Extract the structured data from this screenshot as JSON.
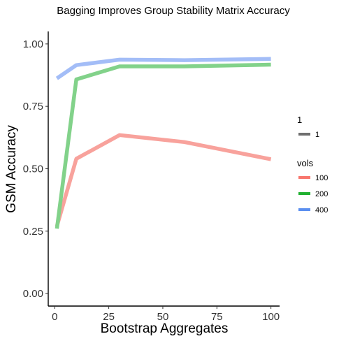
{
  "chart_data": {
    "type": "line",
    "title": "Bagging Improves Group Stability Matrix Accuracy",
    "xlabel": "Bootstrap Aggregates",
    "ylabel": "GSM Accuracy",
    "xlim": [
      -3,
      104
    ],
    "ylim": [
      -0.05,
      1.05
    ],
    "x_ticks": [
      0,
      25,
      50,
      75,
      100
    ],
    "x_tick_labels": [
      "0",
      "25",
      "50",
      "75",
      "100"
    ],
    "y_ticks": [
      0,
      0.25,
      0.5,
      0.75,
      1
    ],
    "y_tick_labels": [
      "0.00",
      "0.25",
      "0.50",
      "0.75",
      "1.00"
    ],
    "grid": false,
    "legend_placement": "right",
    "legends": [
      {
        "title": "1",
        "entries": [
          {
            "label": "1",
            "color": "#6f6f6f"
          }
        ]
      },
      {
        "title": "vols",
        "entries": [
          {
            "label": "100",
            "color": "#f8766d"
          },
          {
            "label": "200",
            "color": "#20b030"
          },
          {
            "label": "400",
            "color": "#5b8ff0"
          }
        ]
      }
    ],
    "series": [
      {
        "name": "100",
        "color": "#f8a29c",
        "x": [
          1,
          10,
          30,
          60,
          100
        ],
        "y": [
          0.27,
          0.54,
          0.635,
          0.607,
          0.538
        ]
      },
      {
        "name": "200",
        "color": "#82d28a",
        "x": [
          1,
          10,
          30,
          60,
          100
        ],
        "y": [
          0.26,
          0.858,
          0.91,
          0.91,
          0.917
        ]
      },
      {
        "name": "400",
        "color": "#a3bdf7",
        "x": [
          1,
          10,
          30,
          60,
          100
        ],
        "y": [
          0.862,
          0.915,
          0.937,
          0.935,
          0.94
        ]
      }
    ]
  }
}
